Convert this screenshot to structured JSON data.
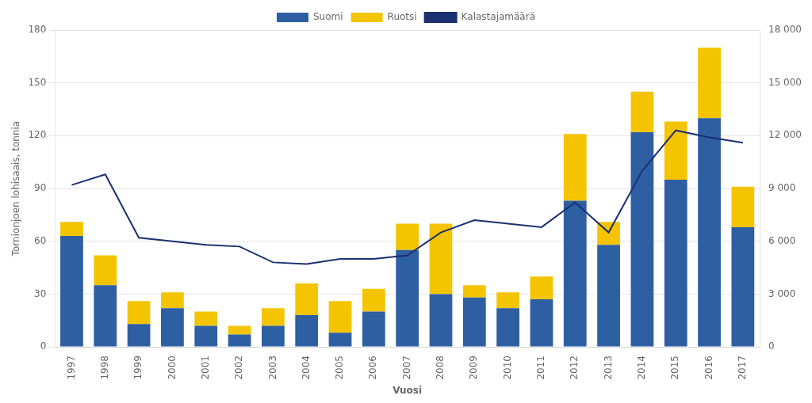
{
  "chart_data": {
    "type": "bar",
    "xlabel": "Vuosi",
    "ylabel": "Tornionjoen lohisaais, tonnia",
    "categories": [
      1997,
      1998,
      1999,
      2000,
      2001,
      2002,
      2003,
      2004,
      2005,
      2006,
      2007,
      2008,
      2009,
      2010,
      2011,
      2012,
      2013,
      2014,
      2015,
      2016,
      2017
    ],
    "series": [
      {
        "name": "Suomi",
        "color": "#2e5fa3",
        "values": [
          63,
          35,
          13,
          22,
          12,
          7,
          12,
          18,
          8,
          20,
          55,
          30,
          28,
          22,
          27,
          83,
          58,
          122,
          95,
          130,
          68
        ]
      },
      {
        "name": "Ruotsi",
        "color": "#f5c400",
        "values": [
          8,
          17,
          13,
          9,
          8,
          5,
          10,
          18,
          18,
          13,
          15,
          40,
          7,
          9,
          13,
          38,
          13,
          23,
          33,
          40,
          23
        ]
      },
      {
        "name": "Kalastajamäärä",
        "type": "line",
        "axis": "y2",
        "color": "#1a3070",
        "values": [
          9200,
          9800,
          6200,
          6000,
          5800,
          5700,
          4800,
          4700,
          5000,
          5000,
          5200,
          6500,
          7200,
          7000,
          6800,
          8200,
          6500,
          10000,
          12300,
          11900,
          11600
        ]
      }
    ],
    "stacked": true,
    "ylim": [
      0,
      180
    ],
    "yticks": [
      0,
      30,
      60,
      90,
      120,
      150,
      180
    ],
    "y2lim": [
      0,
      18000
    ],
    "y2ticks": [
      0,
      {
        "value": 3000,
        "label": "3 000"
      },
      {
        "value": 6000,
        "label": "6 000"
      },
      {
        "value": 9000,
        "label": "9 000"
      },
      {
        "value": 12000,
        "label": "12 000"
      },
      {
        "value": 15000,
        "label": "15 000"
      },
      {
        "value": 18000,
        "label": "18 000"
      }
    ],
    "grid": true,
    "legend": "top"
  }
}
